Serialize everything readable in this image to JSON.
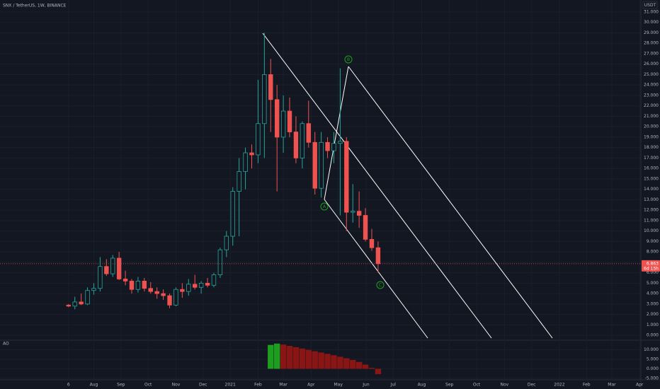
{
  "header": "SNX / TetherUS, 1W, BINANCE",
  "price_unit": "USDT",
  "last_price_label": "6.863",
  "countdown": "6d 15h",
  "annotations": [
    "A",
    "B",
    "C"
  ],
  "chart_data": [
    {
      "type": "candlestick",
      "up_color": "#26a69a",
      "down_color": "#ef5350",
      "x": [
        0,
        1,
        2,
        3,
        4,
        5,
        6,
        7,
        8,
        9,
        10,
        11,
        12,
        13,
        14,
        15,
        16,
        17,
        18,
        19,
        20,
        21,
        22,
        23,
        24,
        25,
        26,
        27,
        28,
        29,
        30,
        31,
        32,
        33,
        34,
        35,
        36,
        37,
        38,
        39,
        40,
        41,
        42,
        43,
        44,
        45,
        46,
        47,
        48,
        49
      ],
      "open": [
        2.9,
        2.8,
        3.2,
        3.0,
        4.3,
        4.5,
        6.6,
        5.9,
        7.4,
        5.4,
        5.2,
        4.4,
        5.2,
        4.5,
        4.2,
        4.0,
        3.8,
        2.9,
        4.4,
        4.2,
        4.9,
        4.6,
        5.0,
        4.8,
        5.8,
        8.2,
        9.5,
        13.8,
        15.7,
        17.5,
        17.3,
        20.3,
        25.0,
        22.6,
        19.0,
        21.5,
        19.5,
        17.0,
        20.3,
        18.5,
        14.1,
        18.5,
        17.7,
        18.4,
        18.6,
        11.8,
        11.9,
        11.5,
        9.2,
        8.4
      ],
      "high": [
        3.0,
        3.7,
        4.0,
        4.6,
        5.0,
        7.5,
        7.3,
        7.7,
        8.0,
        6.2,
        5.4,
        5.6,
        5.5,
        5.1,
        4.6,
        4.4,
        4.0,
        4.6,
        5.0,
        5.4,
        5.8,
        5.2,
        5.5,
        6.0,
        8.4,
        10.0,
        14.2,
        17.0,
        18.0,
        18.3,
        24.5,
        29.0,
        26.5,
        24.0,
        23.0,
        22.8,
        21.0,
        20.5,
        22.5,
        19.5,
        19.5,
        19.0,
        19.5,
        25.6,
        19.0,
        14.5,
        13.8,
        12.2,
        10.2,
        9.0
      ],
      "low": [
        2.7,
        2.5,
        2.9,
        2.9,
        3.9,
        4.2,
        5.7,
        5.6,
        5.3,
        4.8,
        4.0,
        4.1,
        4.2,
        4.0,
        3.5,
        3.4,
        2.6,
        2.8,
        3.6,
        3.8,
        4.4,
        4.0,
        4.6,
        4.6,
        5.5,
        7.5,
        8.6,
        9.5,
        14.0,
        16.0,
        16.5,
        17.0,
        19.5,
        13.8,
        17.5,
        19.0,
        16.5,
        16.0,
        18.0,
        13.5,
        13.2,
        17.0,
        16.5,
        11.5,
        10.0,
        10.8,
        10.3,
        9.0,
        8.1,
        6.0
      ],
      "close": [
        2.8,
        3.2,
        3.0,
        4.3,
        4.5,
        6.6,
        5.9,
        7.4,
        5.4,
        5.2,
        4.4,
        5.2,
        4.5,
        4.2,
        4.0,
        3.8,
        2.9,
        4.4,
        4.2,
        4.9,
        4.6,
        5.0,
        4.8,
        5.8,
        8.2,
        9.5,
        13.8,
        15.7,
        17.5,
        17.3,
        20.3,
        25.0,
        22.6,
        19.0,
        21.5,
        19.5,
        17.0,
        20.3,
        18.5,
        14.1,
        18.5,
        17.7,
        18.4,
        18.6,
        11.8,
        11.9,
        11.5,
        9.2,
        8.4,
        6.863
      ],
      "xlim": [
        -10.85,
        90.6
      ],
      "xticks": [
        {
          "value": 0,
          "label": "6"
        },
        {
          "value": 4,
          "label": "Aug"
        },
        {
          "value": 8.3,
          "label": "Sep"
        },
        {
          "value": 12.6,
          "label": "Oct"
        },
        {
          "value": 17,
          "label": "Nov"
        },
        {
          "value": 21.3,
          "label": "Dec"
        },
        {
          "value": 25.6,
          "label": "2021"
        },
        {
          "value": 30,
          "label": "Feb"
        },
        {
          "value": 34,
          "label": "Mar"
        },
        {
          "value": 38.4,
          "label": "Apr"
        },
        {
          "value": 42.7,
          "label": "May"
        },
        {
          "value": 47.1,
          "label": "Jun"
        },
        {
          "value": 51.4,
          "label": "Jul"
        },
        {
          "value": 55.9,
          "label": "Aug"
        },
        {
          "value": 60.3,
          "label": "Sep"
        },
        {
          "value": 64.6,
          "label": "Oct"
        },
        {
          "value": 69,
          "label": "Nov"
        },
        {
          "value": 73.3,
          "label": "Dec"
        },
        {
          "value": 77.7,
          "label": "2022"
        },
        {
          "value": 82,
          "label": "Feb"
        },
        {
          "value": 86,
          "label": "Mar"
        },
        {
          "value": 90.4,
          "label": "Apr"
        }
      ],
      "ylim": [
        -0.4,
        32.15
      ],
      "yticks": [
        {
          "value": 0,
          "label": "0.000"
        },
        {
          "value": 1,
          "label": "1.000"
        },
        {
          "value": 2,
          "label": "2.000"
        },
        {
          "value": 3,
          "label": "3.000"
        },
        {
          "value": 4,
          "label": "4.000"
        },
        {
          "value": 5,
          "label": "5.000"
        },
        {
          "value": 6,
          "label": "6.000"
        },
        {
          "value": 7,
          "label": "7.000"
        },
        {
          "value": 8,
          "label": "8.000"
        },
        {
          "value": 9,
          "label": "9.000"
        },
        {
          "value": 10,
          "label": "10.000"
        },
        {
          "value": 11,
          "label": "11.000"
        },
        {
          "value": 12,
          "label": "12.000"
        },
        {
          "value": 13,
          "label": "13.000"
        },
        {
          "value": 14,
          "label": "14.000"
        },
        {
          "value": 15,
          "label": "15.000"
        },
        {
          "value": 16,
          "label": "16.000"
        },
        {
          "value": 17,
          "label": "17.000"
        },
        {
          "value": 18,
          "label": "18.000"
        },
        {
          "value": 19,
          "label": "19.000"
        },
        {
          "value": 20,
          "label": "20.000"
        },
        {
          "value": 21,
          "label": "21.000"
        },
        {
          "value": 22,
          "label": "22.000"
        },
        {
          "value": 23,
          "label": "23.000"
        },
        {
          "value": 24,
          "label": "24.000"
        },
        {
          "value": 25,
          "label": "25.000"
        },
        {
          "value": 26,
          "label": "26.000"
        },
        {
          "value": 27,
          "label": "27.000"
        },
        {
          "value": 28,
          "label": "28.000"
        },
        {
          "value": 29,
          "label": "29.000"
        },
        {
          "value": 30,
          "label": "30.000"
        },
        {
          "value": 31,
          "label": "31.000"
        }
      ]
    },
    {
      "type": "bar",
      "title": "AO",
      "up_color": "#1e9e1e",
      "down_color": "#8a1515",
      "x": [
        32,
        33,
        34,
        35,
        36,
        37,
        38,
        39,
        40,
        41,
        42,
        43,
        44,
        45,
        46,
        47,
        48,
        49
      ],
      "values": [
        12.5,
        13.2,
        12.7,
        12.0,
        11.3,
        10.6,
        9.9,
        9.2,
        8.5,
        7.8,
        7.1,
        6.3,
        5.5,
        4.6,
        3.6,
        2.2,
        0.5,
        -2.8
      ],
      "ylim": [
        -5.4,
        14.6
      ],
      "yticks": [
        {
          "value": -5,
          "label": "-5.000"
        },
        {
          "value": 0,
          "label": "0.000"
        },
        {
          "value": 5,
          "label": "5.000"
        },
        {
          "value": 10,
          "label": "10.000"
        }
      ]
    }
  ]
}
